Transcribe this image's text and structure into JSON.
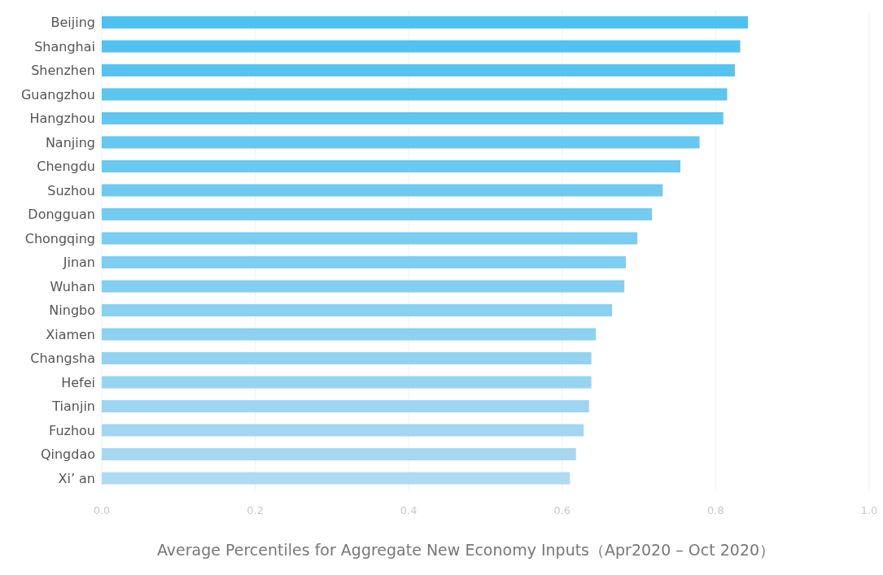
{
  "chart_data": {
    "type": "bar",
    "orientation": "horizontal",
    "xlabel": "Average Percentiles for Aggregate New Economy Inputs（Apr2020 – Oct 2020）",
    "categories": [
      "Beijing",
      "Shanghai",
      "Shenzhen",
      "Guangzhou",
      "Hangzhou",
      "Nanjing",
      "Chengdu",
      "Suzhou",
      "Dongguan",
      "Chongqing",
      "Jinan",
      "Wuhan",
      "Ningbo",
      "Xiamen",
      "Changsha",
      "Hefei",
      "Tianjin",
      "Fuzhou",
      "Qingdao",
      "Xi’ an"
    ],
    "values": [
      0.842,
      0.832,
      0.825,
      0.815,
      0.81,
      0.779,
      0.754,
      0.731,
      0.717,
      0.698,
      0.683,
      0.681,
      0.665,
      0.644,
      0.638,
      0.638,
      0.635,
      0.628,
      0.618,
      0.61
    ],
    "colors": [
      "#4dc2f0",
      "#52c3f0",
      "#56c4f0",
      "#5bc6f0",
      "#60c7f0",
      "#65c8f0",
      "#6ac9f0",
      "#6fcaf0",
      "#74ccf0",
      "#79cdf0",
      "#7ecef1",
      "#83cff1",
      "#88d1f1",
      "#8dd2f1",
      "#92d3f1",
      "#97d4f2",
      "#9cd6f2",
      "#a1d7f2",
      "#a6d8f2",
      "#addbf3"
    ],
    "xlim": [
      0,
      1
    ],
    "xticks": [
      {
        "value": 0,
        "label": "0.0"
      },
      {
        "value": 0.2,
        "label": "0.2"
      },
      {
        "value": 0.4,
        "label": "0.4"
      },
      {
        "value": 0.6,
        "label": "0.6"
      },
      {
        "value": 0.8,
        "label": "0.8"
      },
      {
        "value": 1,
        "label": "1.0"
      }
    ],
    "grid": "x"
  }
}
